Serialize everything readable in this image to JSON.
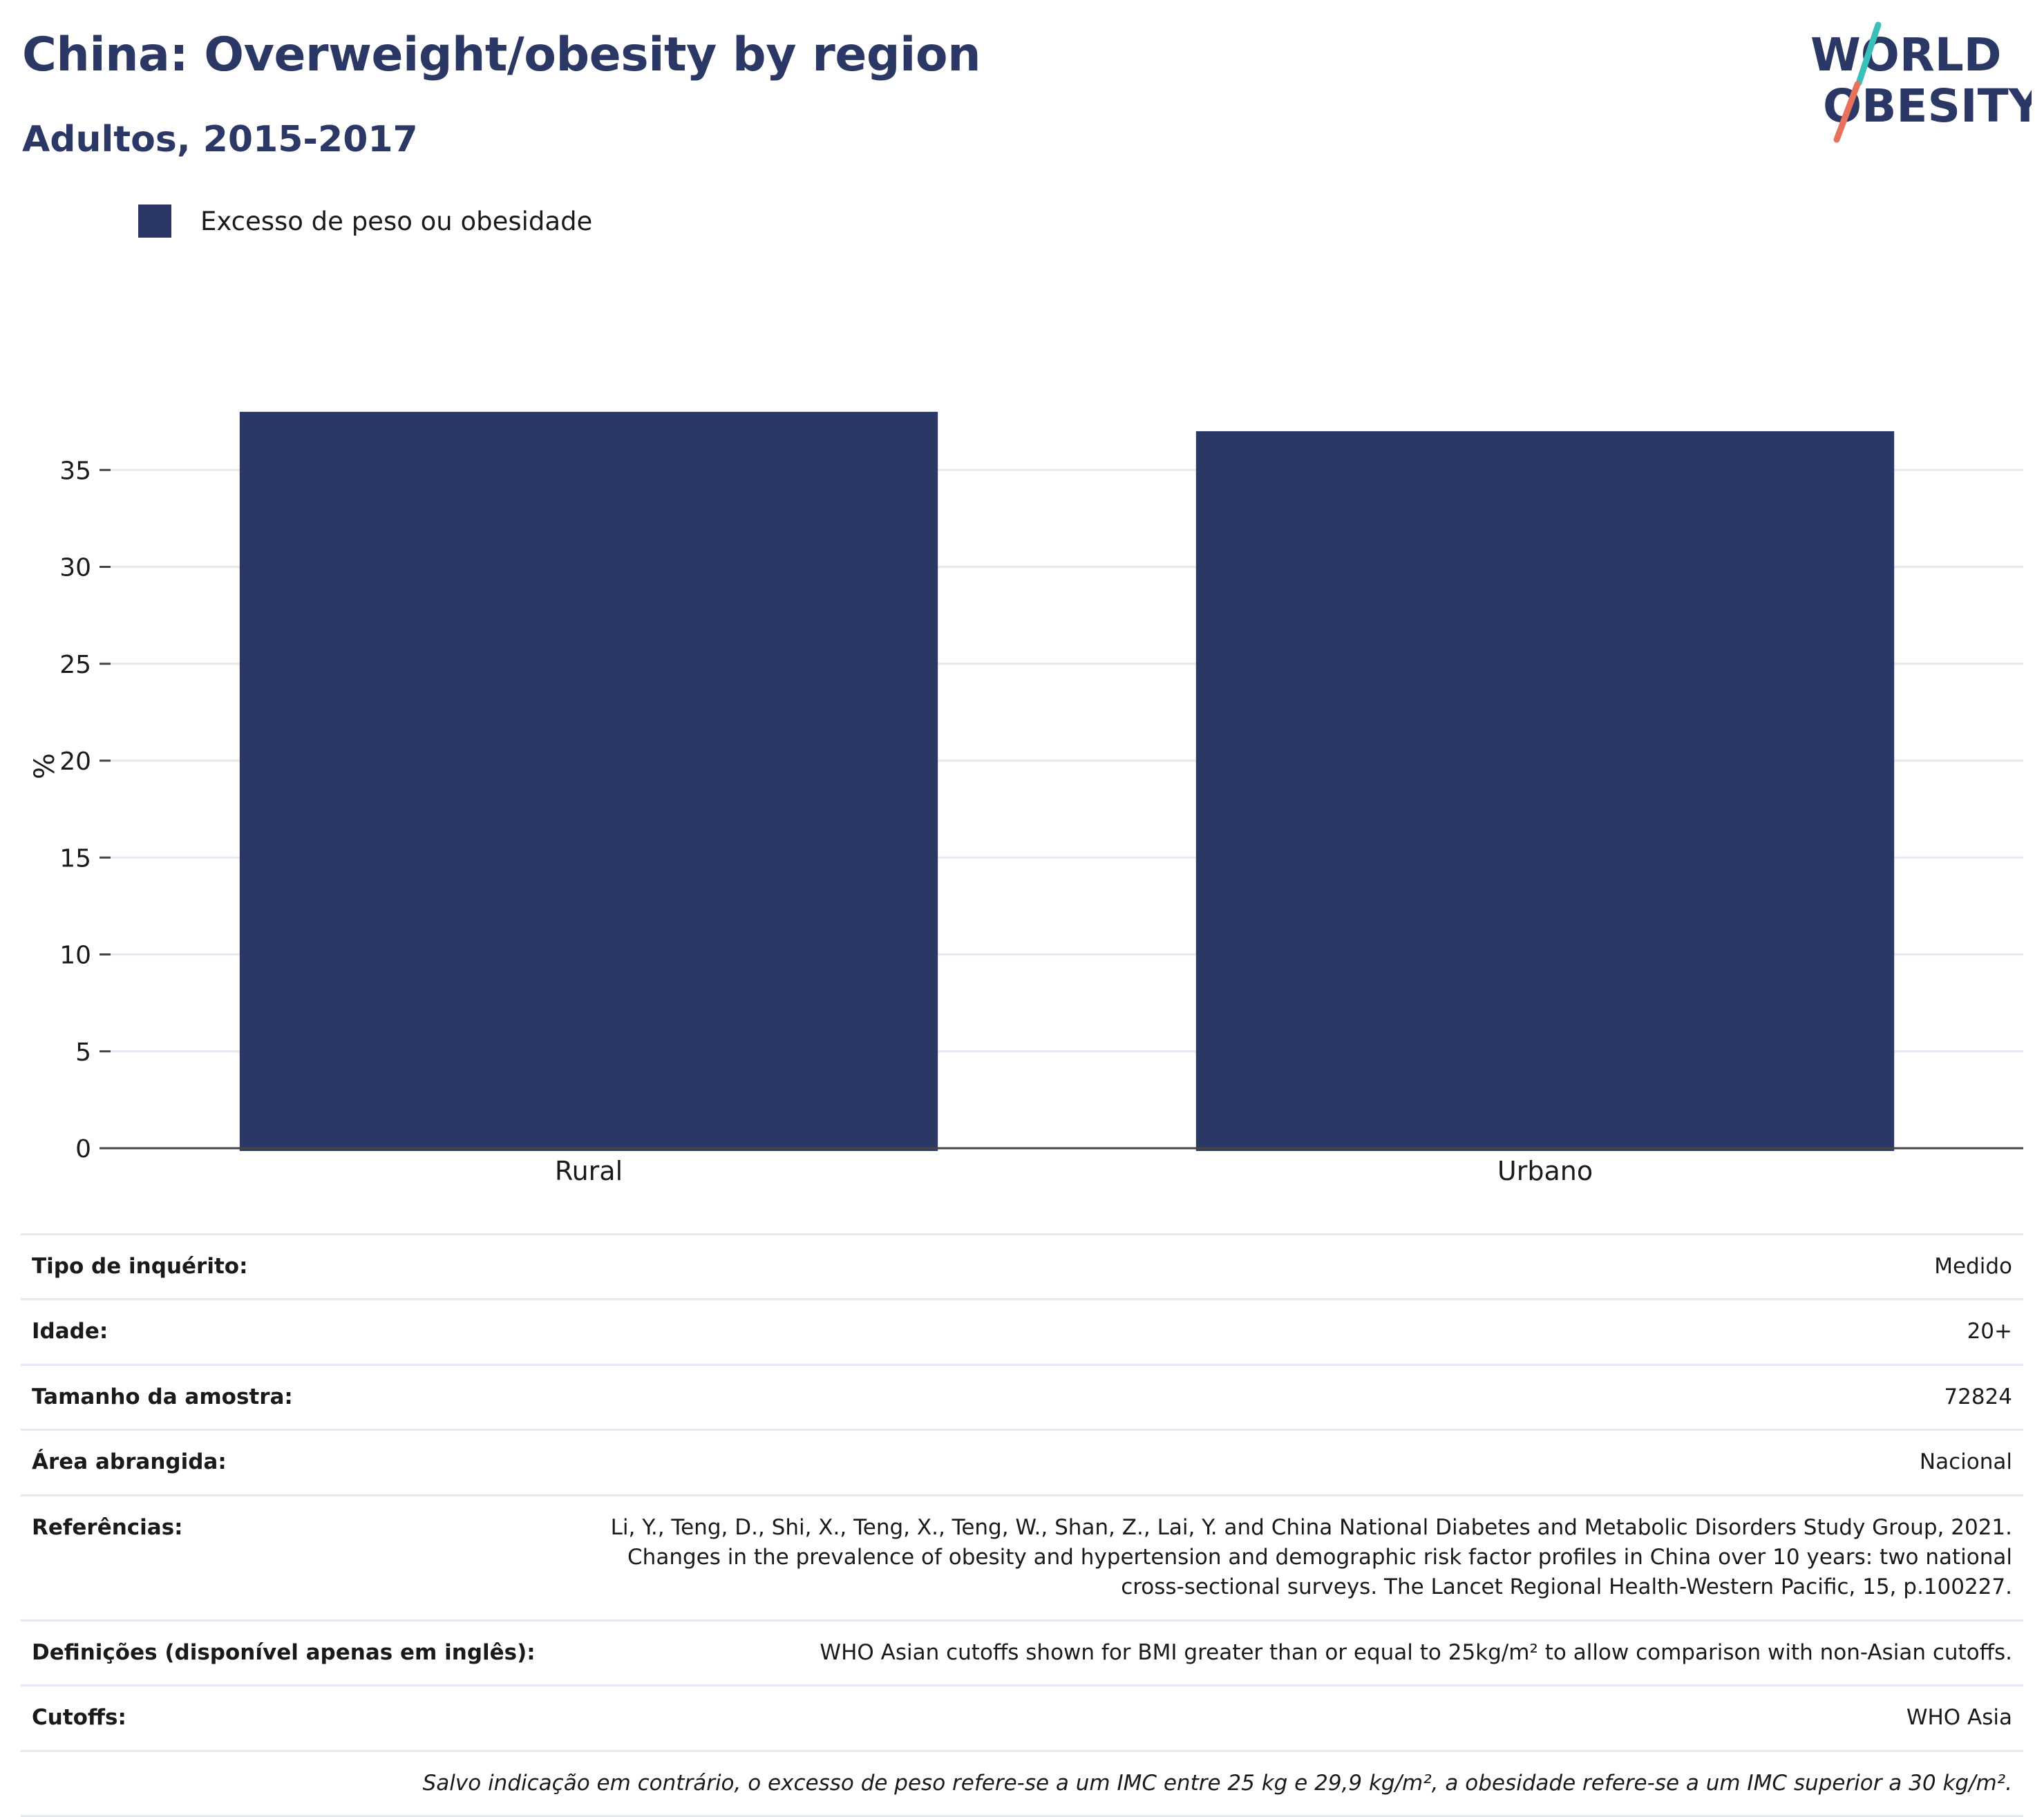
{
  "header": {
    "title": "China: Overweight/obesity by region",
    "subtitle": "Adultos, 2015-2017",
    "logo_line1": "WORLD",
    "logo_line2": "OBESITY"
  },
  "colors": {
    "primary": "#2b3764",
    "logo_teal": "#3bbfb9",
    "logo_coral": "#e8715d",
    "grid": "#e6e9f2"
  },
  "legend": {
    "items": [
      {
        "label": "Excesso de peso ou obesidade",
        "color": "#2b3764"
      }
    ]
  },
  "chart_data": {
    "type": "bar",
    "categories": [
      "Rural",
      "Urbano"
    ],
    "series": [
      {
        "name": "Excesso de peso ou obesidade",
        "values": [
          38,
          37
        ],
        "color": "#2b3764"
      }
    ],
    "ylabel": "%",
    "xlabel": "",
    "ylim": [
      0,
      40
    ],
    "yticks": [
      0,
      5,
      10,
      15,
      20,
      25,
      30,
      35
    ],
    "grid": true,
    "legend_position": "top-left"
  },
  "info": {
    "rows": [
      {
        "key": "Tipo de inquérito:",
        "value": "Medido"
      },
      {
        "key": "Idade:",
        "value": "20+"
      },
      {
        "key": "Tamanho da amostra:",
        "value": "72824"
      },
      {
        "key": "Área abrangida:",
        "value": "Nacional"
      },
      {
        "key": "Referências:",
        "value": "Li, Y., Teng, D., Shi, X., Teng, X., Teng, W., Shan, Z., Lai, Y. and China National Diabetes and Metabolic Disorders Study Group, 2021. Changes in the prevalence of obesity and hypertension and demographic risk factor profiles in China over 10 years: two national cross-sectional surveys. The Lancet Regional Health-Western Pacific, 15, p.100227."
      },
      {
        "key": "Definições (disponível apenas em inglês):",
        "value": "WHO Asian cutoffs shown for BMI greater than or equal to 25kg/m² to allow comparison with non-Asian cutoffs."
      },
      {
        "key": "Cutoffs:",
        "value": "WHO Asia"
      }
    ],
    "footnote": "Salvo indicação em contrário, o excesso de peso refere-se a um IMC entre 25 kg e 29,9 kg/m², a obesidade refere-se a um IMC superior a 30 kg/m²."
  }
}
